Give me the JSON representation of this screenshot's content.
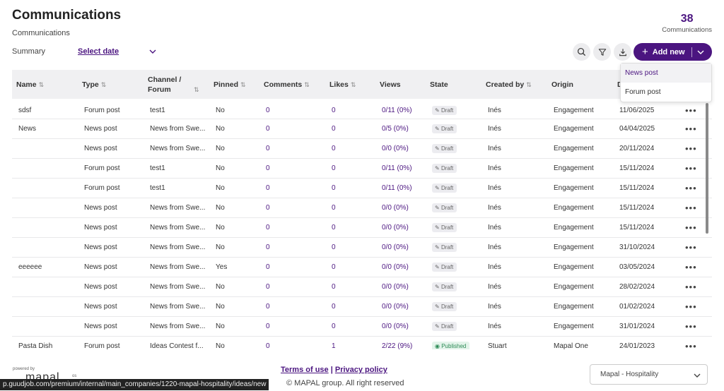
{
  "header": {
    "title": "Communications",
    "subtitle": "Communications",
    "count": "38",
    "count_label": "Communications"
  },
  "filters": {
    "summary_label": "Summary",
    "date_label": "Select date"
  },
  "toolbar": {
    "add_label": "Add new",
    "search_icon": "search-icon",
    "filter_icon": "filter-icon",
    "download_icon": "download-icon"
  },
  "dropdown": {
    "items": [
      "News post",
      "Forum post"
    ]
  },
  "table": {
    "columns": [
      "Name",
      "Type",
      "Channel / Forum",
      "Pinned",
      "Comments",
      "Likes",
      "Views",
      "State",
      "Created by",
      "Origin",
      "D"
    ],
    "rows": [
      {
        "name": "sdsf",
        "type": "Forum post",
        "channel": "test1",
        "pinned": "No",
        "comments": "0",
        "likes": "0",
        "views": "0/11 (0%)",
        "state": "Draft",
        "created_by": "Inés",
        "origin": "Engagement",
        "date": "11/06/2025"
      },
      {
        "name": "News",
        "type": "News post",
        "channel": "News from Swe...",
        "pinned": "No",
        "comments": "0",
        "likes": "0",
        "views": "0/5 (0%)",
        "state": "Draft",
        "created_by": "Inés",
        "origin": "Engagement",
        "date": "04/04/2025"
      },
      {
        "name": "",
        "type": "News post",
        "channel": "News from Swe...",
        "pinned": "No",
        "comments": "0",
        "likes": "0",
        "views": "0/0 (0%)",
        "state": "Draft",
        "created_by": "Inés",
        "origin": "Engagement",
        "date": "20/11/2024"
      },
      {
        "name": "",
        "type": "Forum post",
        "channel": "test1",
        "pinned": "No",
        "comments": "0",
        "likes": "0",
        "views": "0/11 (0%)",
        "state": "Draft",
        "created_by": "Inés",
        "origin": "Engagement",
        "date": "15/11/2024"
      },
      {
        "name": "",
        "type": "Forum post",
        "channel": "test1",
        "pinned": "No",
        "comments": "0",
        "likes": "0",
        "views": "0/11 (0%)",
        "state": "Draft",
        "created_by": "Inés",
        "origin": "Engagement",
        "date": "15/11/2024"
      },
      {
        "name": "",
        "type": "News post",
        "channel": "News from Swe...",
        "pinned": "No",
        "comments": "0",
        "likes": "0",
        "views": "0/0 (0%)",
        "state": "Draft",
        "created_by": "Inés",
        "origin": "Engagement",
        "date": "15/11/2024"
      },
      {
        "name": "",
        "type": "News post",
        "channel": "News from Swe...",
        "pinned": "No",
        "comments": "0",
        "likes": "0",
        "views": "0/0 (0%)",
        "state": "Draft",
        "created_by": "Inés",
        "origin": "Engagement",
        "date": "15/11/2024"
      },
      {
        "name": "",
        "type": "News post",
        "channel": "News from Swe...",
        "pinned": "No",
        "comments": "0",
        "likes": "0",
        "views": "0/0 (0%)",
        "state": "Draft",
        "created_by": "Inés",
        "origin": "Engagement",
        "date": "31/10/2024"
      },
      {
        "name": "eeeeee",
        "type": "News post",
        "channel": "News from Swe...",
        "pinned": "Yes",
        "comments": "0",
        "likes": "0",
        "views": "0/0 (0%)",
        "state": "Draft",
        "created_by": "Inés",
        "origin": "Engagement",
        "date": "03/05/2024"
      },
      {
        "name": "",
        "type": "News post",
        "channel": "News from Swe...",
        "pinned": "No",
        "comments": "0",
        "likes": "0",
        "views": "0/0 (0%)",
        "state": "Draft",
        "created_by": "Inés",
        "origin": "Engagement",
        "date": "28/02/2024"
      },
      {
        "name": "",
        "type": "News post",
        "channel": "News from Swe...",
        "pinned": "No",
        "comments": "0",
        "likes": "0",
        "views": "0/0 (0%)",
        "state": "Draft",
        "created_by": "Inés",
        "origin": "Engagement",
        "date": "01/02/2024"
      },
      {
        "name": "",
        "type": "News post",
        "channel": "News from Swe...",
        "pinned": "No",
        "comments": "0",
        "likes": "0",
        "views": "0/0 (0%)",
        "state": "Draft",
        "created_by": "Inés",
        "origin": "Engagement",
        "date": "31/01/2024"
      },
      {
        "name": "Pasta Dish",
        "type": "Forum post",
        "channel": "Ideas Contest f...",
        "pinned": "No",
        "comments": "0",
        "likes": "1",
        "views": "2/22 (9%)",
        "state": "Published",
        "created_by": "Stuart",
        "origin": "Mapal One",
        "date": "24/01/2023"
      }
    ]
  },
  "footer": {
    "terms": "Terms of use",
    "separator": "|",
    "privacy": "Privacy policy",
    "copyright": "© MAPAL group. All right reserved",
    "powered_by": "powered by",
    "logo_text": "mapal",
    "logo_suffix": "os",
    "org_select": "Mapal - Hospitality"
  },
  "status_bar": {
    "url": "p.guudjob.com/premium/internal/main_companies/1220-mapal-hospitality/ideas/new"
  },
  "colors": {
    "accent": "#4b1580",
    "published": "#2e8b57"
  }
}
